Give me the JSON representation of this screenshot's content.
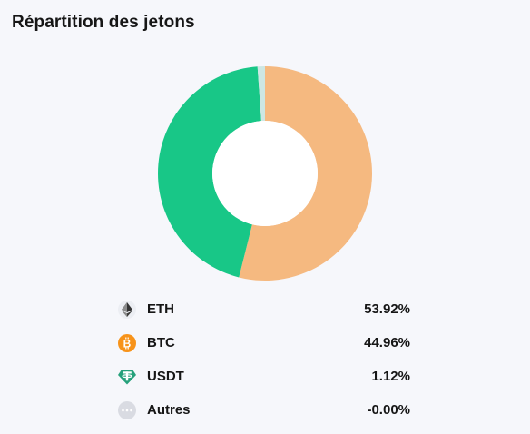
{
  "header": {
    "title": "Répartition des jetons"
  },
  "chart_data": {
    "type": "pie",
    "title": "Répartition des jetons",
    "categories": [
      "ETH",
      "BTC",
      "USDT",
      "Autres"
    ],
    "values": [
      53.92,
      44.96,
      1.12,
      0.0
    ],
    "colors": [
      "#f5b980",
      "#18c787",
      "#cde7e3",
      "#d9dbe2"
    ],
    "donut": true
  },
  "legend": {
    "items": [
      {
        "name": "ETH",
        "percent": "53.92%",
        "icon": "eth-icon"
      },
      {
        "name": "BTC",
        "percent": "44.96%",
        "icon": "btc-icon"
      },
      {
        "name": "USDT",
        "percent": "1.12%",
        "icon": "usdt-icon"
      },
      {
        "name": "Autres",
        "percent": "-0.00%",
        "icon": "more-icon"
      }
    ]
  }
}
